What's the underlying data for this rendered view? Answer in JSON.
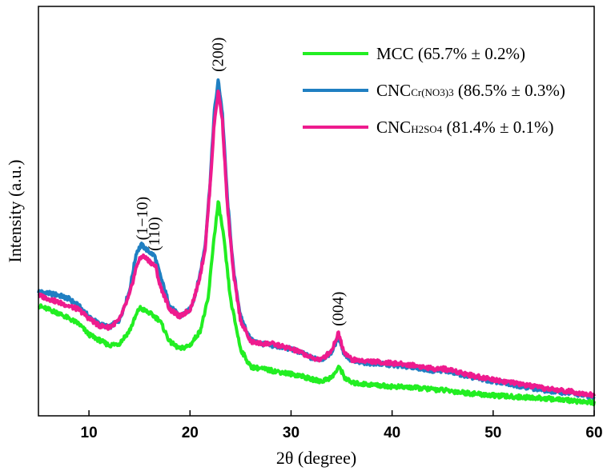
{
  "chart_data": {
    "type": "line",
    "title": "",
    "xlabel": "2θ (degree)",
    "ylabel": "Intensity (a.u.)",
    "xlim": [
      5,
      60
    ],
    "ylim": [
      0,
      100
    ],
    "x_ticks": [
      10,
      20,
      30,
      40,
      50,
      60
    ],
    "grid": false,
    "legend_position": "top-right",
    "series": [
      {
        "key": "mcc",
        "name": "MCC (65.7% ± 0.2%)",
        "color": "#22ee22",
        "points": [
          [
            5,
            28
          ],
          [
            7,
            26
          ],
          [
            9,
            23
          ],
          [
            10,
            20
          ],
          [
            12,
            17
          ],
          [
            13,
            17.5
          ],
          [
            14,
            21
          ],
          [
            15,
            27.5
          ],
          [
            16,
            26
          ],
          [
            17,
            24
          ],
          [
            18,
            18
          ],
          [
            19,
            16
          ],
          [
            20,
            17
          ],
          [
            21,
            21
          ],
          [
            21.8,
            30
          ],
          [
            22.3,
            45
          ],
          [
            22.8,
            57
          ],
          [
            23.3,
            48
          ],
          [
            24,
            30
          ],
          [
            25,
            16
          ],
          [
            26,
            11
          ],
          [
            28,
            10
          ],
          [
            29,
            9.5
          ],
          [
            31,
            8.5
          ],
          [
            32,
            7.5
          ],
          [
            33,
            7
          ],
          [
            34,
            8
          ],
          [
            34.8,
            11
          ],
          [
            35.3,
            8
          ],
          [
            36,
            6.5
          ],
          [
            38,
            6
          ],
          [
            40,
            5.5
          ],
          [
            42,
            5.2
          ],
          [
            45,
            4.5
          ],
          [
            48,
            3.5
          ],
          [
            50,
            3
          ],
          [
            53,
            2.5
          ],
          [
            55,
            2.2
          ],
          [
            58,
            1.5
          ],
          [
            60,
            1
          ]
        ]
      },
      {
        "key": "cnc_cr",
        "name": "CNC",
        "subscript": "Cr(NO3)3",
        "suffix": " (86.5% ± 0.3%)",
        "color": "#1f7fc2",
        "points": [
          [
            5,
            32
          ],
          [
            7,
            31
          ],
          [
            8,
            30
          ],
          [
            9,
            28
          ],
          [
            10,
            25
          ],
          [
            11,
            23
          ],
          [
            12,
            22
          ],
          [
            13,
            24
          ],
          [
            14,
            32
          ],
          [
            14.7,
            43
          ],
          [
            15.2,
            45
          ],
          [
            16,
            43
          ],
          [
            16.5,
            42
          ],
          [
            17,
            37
          ],
          [
            18,
            28
          ],
          [
            19,
            25
          ],
          [
            20,
            27
          ],
          [
            20.5,
            31
          ],
          [
            21,
            37
          ],
          [
            21.5,
            45
          ],
          [
            22,
            63
          ],
          [
            22.4,
            82
          ],
          [
            22.8,
            91
          ],
          [
            23.2,
            82
          ],
          [
            23.7,
            58
          ],
          [
            24.3,
            38
          ],
          [
            25,
            25
          ],
          [
            26,
            18.5
          ],
          [
            27,
            17.5
          ],
          [
            28,
            17
          ],
          [
            29,
            16.5
          ],
          [
            30,
            16
          ],
          [
            31,
            15
          ],
          [
            32,
            13.5
          ],
          [
            33,
            13
          ],
          [
            34,
            15
          ],
          [
            34.7,
            19.5
          ],
          [
            35.2,
            15
          ],
          [
            36,
            12.5
          ],
          [
            38,
            12
          ],
          [
            40,
            11.5
          ],
          [
            42,
            11
          ],
          [
            44,
            10
          ],
          [
            45,
            10
          ],
          [
            46,
            9.5
          ],
          [
            48,
            8
          ],
          [
            50,
            7
          ],
          [
            52,
            6
          ],
          [
            55,
            4.5
          ],
          [
            58,
            3.5
          ],
          [
            60,
            2.5
          ]
        ]
      },
      {
        "key": "cnc_h2so4",
        "name": "CNC",
        "subscript": "H2SO4",
        "suffix": " (81.4% ± 0.1%)",
        "color": "#ee1b8e",
        "points": [
          [
            5,
            31
          ],
          [
            7,
            29
          ],
          [
            9,
            27
          ],
          [
            10,
            24.5
          ],
          [
            11,
            22.5
          ],
          [
            12,
            22
          ],
          [
            13,
            24
          ],
          [
            14,
            31
          ],
          [
            14.8,
            40
          ],
          [
            15.3,
            42
          ],
          [
            16,
            40.5
          ],
          [
            16.6,
            39
          ],
          [
            17,
            34
          ],
          [
            18,
            27
          ],
          [
            19,
            25
          ],
          [
            20,
            27
          ],
          [
            20.5,
            31
          ],
          [
            21,
            36.5
          ],
          [
            21.5,
            44
          ],
          [
            22,
            62
          ],
          [
            22.4,
            79
          ],
          [
            22.8,
            88
          ],
          [
            23.2,
            80
          ],
          [
            23.7,
            56
          ],
          [
            24.3,
            37
          ],
          [
            25,
            24
          ],
          [
            26,
            18
          ],
          [
            27,
            17.5
          ],
          [
            28,
            17.5
          ],
          [
            29,
            16.8
          ],
          [
            30,
            16
          ],
          [
            31,
            15
          ],
          [
            32,
            13.5
          ],
          [
            33,
            13
          ],
          [
            34,
            15.5
          ],
          [
            34.7,
            20.5
          ],
          [
            35.2,
            15.5
          ],
          [
            36,
            13
          ],
          [
            38,
            12.5
          ],
          [
            40,
            12
          ],
          [
            42,
            11.5
          ],
          [
            44,
            10.5
          ],
          [
            45,
            10.5
          ],
          [
            46,
            10
          ],
          [
            48,
            8.5
          ],
          [
            50,
            7.5
          ],
          [
            52,
            6.5
          ],
          [
            55,
            5
          ],
          [
            58,
            4
          ],
          [
            60,
            3
          ]
        ]
      }
    ],
    "annotations": [
      {
        "text": "(200)",
        "x": 22.8,
        "y": 92
      },
      {
        "text": "(1−10)",
        "x": 15.3,
        "y": 45
      },
      {
        "text": "(110)",
        "x": 16.5,
        "y": 42
      },
      {
        "text": "(004)",
        "x": 34.7,
        "y": 21
      }
    ]
  }
}
